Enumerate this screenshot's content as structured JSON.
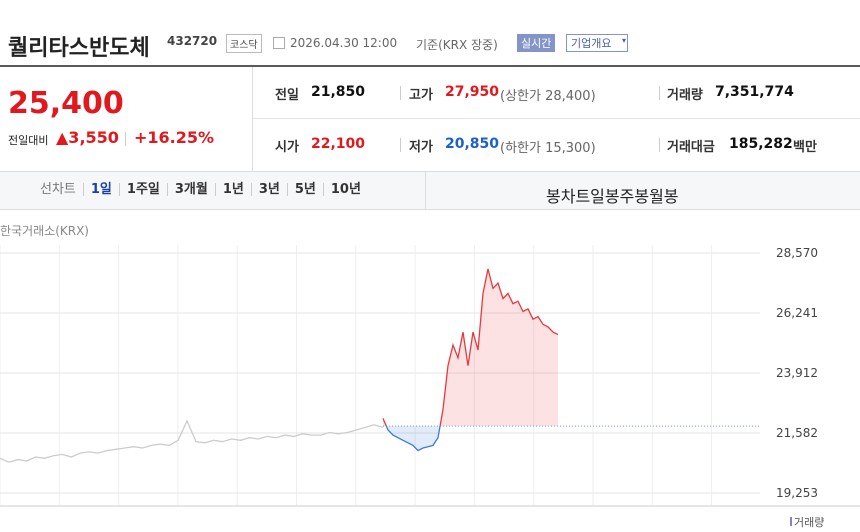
{
  "header": {
    "title": "퀄리타스반도체",
    "code": "432720",
    "market": "코스닥",
    "datetime": "2026.04.30 12:00",
    "basis": "기준(KRX 장중)",
    "realtime": "실시간",
    "company": "기업개요"
  },
  "summary": {
    "price": "25,400",
    "change_label": "전일대비",
    "change": "▲3,550",
    "change_rate": "+16.25%",
    "prev_label": "전일",
    "prev": "21,850",
    "high_label": "고가",
    "high": "27,950",
    "upper_limit": "(상한가 28,400)",
    "volume_label": "거래량",
    "volume": "7,351,774",
    "open_label": "시가",
    "open": "22,100",
    "low_label": "저가",
    "low": "20,850",
    "lower_limit": "(하한가 15,300)",
    "amount_label": "거래대금",
    "amount": "185,282",
    "amount_unit": "백만"
  },
  "tabs": {
    "line_label": "선차트",
    "line_items": [
      "1일",
      "1주일",
      "3개월",
      "1년",
      "3년",
      "5년",
      "10년"
    ],
    "candle_label": "봉차트",
    "candle_items": [
      "일봉",
      "주봉",
      "월봉"
    ]
  },
  "chart_data": {
    "type": "line",
    "source": "한국거래소(KRX)",
    "volume_label": "거래량",
    "baseline": 21850,
    "ylim": [
      18787,
      28880
    ],
    "yticks": [
      {
        "value": 19253,
        "label": "19,253"
      },
      {
        "value": 21582,
        "label": "21,582"
      },
      {
        "value": 23912,
        "label": "23,912"
      },
      {
        "value": 26241,
        "label": "26,241"
      },
      {
        "value": 28570,
        "label": "28,570"
      }
    ],
    "grid": true,
    "series": [
      {
        "color": "#cccccc",
        "values": [
          20600,
          20450,
          20550,
          20500,
          20650,
          20600,
          20700,
          20750,
          20650,
          20800,
          20850,
          20800,
          20900,
          20950,
          21000,
          21050,
          21000,
          21100,
          21150,
          21100,
          21300,
          22050,
          21250,
          21200,
          21300,
          21250,
          21350,
          21300,
          21400,
          21350,
          21450,
          21400,
          21500,
          21450,
          21550,
          21500,
          21500,
          21600,
          21550,
          21600,
          21700,
          21800,
          21900,
          21800
        ]
      },
      {
        "color": "#e8383d",
        "color_below": "#3a7bd5",
        "values": [
          22150,
          21700,
          21500,
          21400,
          21300,
          21200,
          21100,
          20900,
          21000,
          21050,
          21100,
          21400,
          22500,
          24200,
          25000,
          24500,
          25500,
          24200,
          25500,
          24800,
          27000,
          27950,
          27200,
          27400,
          26800,
          27000,
          26600,
          26700,
          26300,
          26400,
          26000,
          26100,
          25800,
          25700,
          25500,
          25400
        ]
      }
    ]
  }
}
